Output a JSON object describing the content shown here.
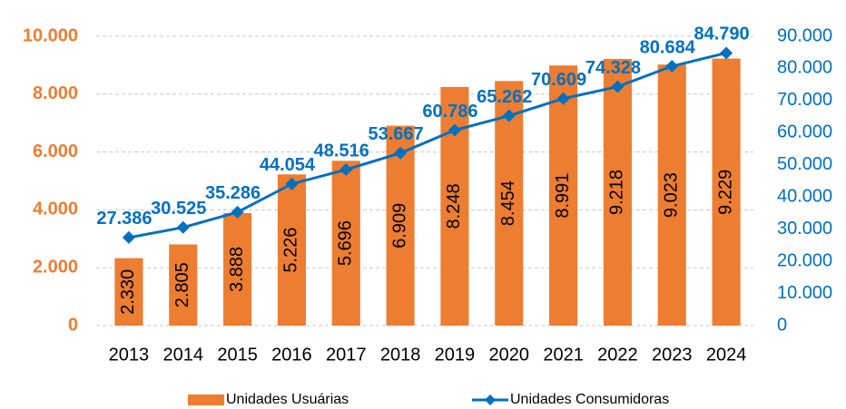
{
  "chart_data": {
    "type": "bar-line",
    "categories": [
      "2013",
      "2014",
      "2015",
      "2016",
      "2017",
      "2018",
      "2019",
      "2020",
      "2021",
      "2022",
      "2023",
      "2024"
    ],
    "series": [
      {
        "name": "Unidades Usuárias",
        "type": "bar",
        "color": "#ED7D31",
        "axis": "y",
        "values": [
          2330,
          2805,
          3888,
          5226,
          5696,
          6909,
          8248,
          8454,
          8991,
          9218,
          9023,
          9229
        ],
        "value_labels": [
          "2.330",
          "2.805",
          "3.888",
          "5.226",
          "5.696",
          "6.909",
          "8.248",
          "8.454",
          "8.991",
          "9.218",
          "9.023",
          "9.229"
        ]
      },
      {
        "name": "Unidades Consumidoras",
        "type": "line",
        "color": "#0070C0",
        "axis": "y2",
        "values": [
          27386,
          30525,
          35286,
          44054,
          48516,
          53667,
          60786,
          65262,
          70609,
          74328,
          80684,
          84790
        ],
        "value_labels": [
          "27.386",
          "30.525",
          "35.286",
          "44.054",
          "48.516",
          "53.667",
          "60.786",
          "65.262",
          "70.609",
          "74.328",
          "80.684",
          "84.790"
        ]
      }
    ],
    "ylim": [
      0,
      10000
    ],
    "yticks": [
      {
        "value": 0,
        "label": "0"
      },
      {
        "value": 2000,
        "label": "2.000"
      },
      {
        "value": 4000,
        "label": "4.000"
      },
      {
        "value": 6000,
        "label": "6.000"
      },
      {
        "value": 8000,
        "label": "8.000"
      },
      {
        "value": 10000,
        "label": "10.000"
      }
    ],
    "y2lim": [
      0,
      90000
    ],
    "y2ticks": [
      {
        "value": 0,
        "label": "0"
      },
      {
        "value": 10000,
        "label": "10.000"
      },
      {
        "value": 20000,
        "label": "20.000"
      },
      {
        "value": 30000,
        "label": "30.000"
      },
      {
        "value": 40000,
        "label": "40.000"
      },
      {
        "value": 50000,
        "label": "50.000"
      },
      {
        "value": 60000,
        "label": "60.000"
      },
      {
        "value": 70000,
        "label": "70.000"
      },
      {
        "value": 80000,
        "label": "80.000"
      },
      {
        "value": 90000,
        "label": "90.000"
      }
    ],
    "grid": true,
    "legend": "bottom"
  }
}
